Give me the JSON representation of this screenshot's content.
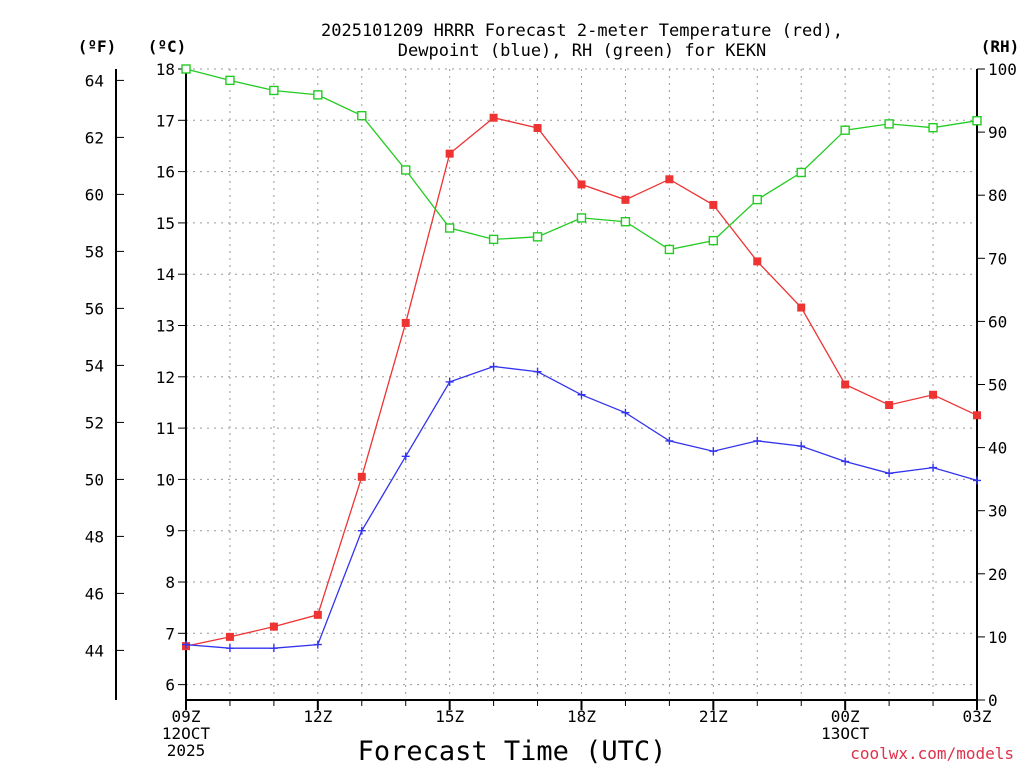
{
  "chart_data": {
    "type": "line",
    "title_line1": "2025101209 HRRR Forecast 2-meter Temperature (red),",
    "title_line2": "Dewpoint (blue), RH (green) for KEKN",
    "xlabel": "Forecast Time (UTC)",
    "credit": "coolwx.com/models",
    "axis_labels": {
      "fahrenheit": "(ºF)",
      "celsius": "(ºC)",
      "rh": "(RH)"
    },
    "x_hours": [
      0,
      1,
      2,
      3,
      4,
      5,
      6,
      7,
      8,
      9,
      10,
      11,
      12,
      13,
      14,
      15,
      16,
      17,
      18
    ],
    "x_ticks": [
      {
        "hour": 0,
        "lines": [
          "09Z",
          "12OCT",
          "2025"
        ]
      },
      {
        "hour": 3,
        "lines": [
          "12Z"
        ]
      },
      {
        "hour": 6,
        "lines": [
          "15Z"
        ]
      },
      {
        "hour": 9,
        "lines": [
          "18Z"
        ]
      },
      {
        "hour": 12,
        "lines": [
          "21Z"
        ]
      },
      {
        "hour": 15,
        "lines": [
          "00Z",
          "13OCT"
        ]
      },
      {
        "hour": 18,
        "lines": [
          "03Z"
        ]
      }
    ],
    "celsius_axis": {
      "min": 5.7,
      "max": 18.0,
      "ticks": [
        6,
        7,
        8,
        9,
        10,
        11,
        12,
        13,
        14,
        15,
        16,
        17,
        18
      ]
    },
    "fahrenheit_ticks": [
      "44",
      "46",
      "48",
      "50",
      "52",
      "54",
      "56",
      "58",
      "60",
      "62",
      "64"
    ],
    "rh_axis": {
      "min": 0,
      "max": 100,
      "ticks": [
        0,
        10,
        20,
        30,
        40,
        50,
        60,
        70,
        80,
        90,
        100
      ]
    },
    "series": [
      {
        "name": "Temperature",
        "unit": "C",
        "color": "#ee3333",
        "marker": "filled-square",
        "values": [
          6.75,
          6.93,
          7.13,
          7.36,
          10.05,
          13.05,
          16.35,
          17.05,
          16.85,
          15.75,
          15.45,
          15.85,
          15.35,
          14.25,
          13.35,
          11.85,
          11.45,
          11.65,
          11.25
        ]
      },
      {
        "name": "Dewpoint",
        "unit": "C",
        "color": "#3333ee",
        "marker": "plus",
        "values": [
          6.78,
          6.71,
          6.71,
          6.78,
          9.0,
          10.45,
          11.9,
          12.2,
          12.1,
          11.65,
          11.3,
          10.75,
          10.55,
          10.75,
          10.65,
          10.35,
          10.12,
          10.23,
          9.98
        ]
      },
      {
        "name": "RH",
        "unit": "%",
        "color": "#22cc22",
        "marker": "open-square",
        "values": [
          100,
          98.2,
          96.6,
          95.9,
          92.6,
          84.0,
          74.8,
          73.0,
          73.4,
          76.4,
          75.8,
          71.4,
          72.8,
          79.3,
          83.6,
          90.3,
          91.3,
          90.7,
          91.8
        ]
      }
    ]
  }
}
